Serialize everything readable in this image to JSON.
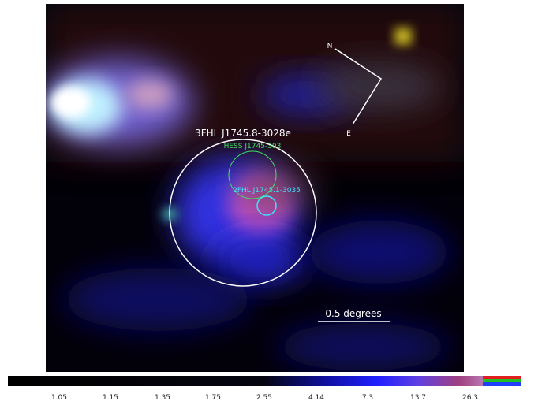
{
  "image": {
    "labels": {
      "source_3fhl": "3FHL J1745.8-3028e",
      "source_hess": "HESS J1745-303",
      "source_2fhl": "2FHL J1745.1-3035",
      "north": "N",
      "east": "E",
      "scale": "0.5 degrees"
    }
  },
  "colorbar": {
    "labels": [
      "1.05",
      "1.15",
      "1.35",
      "1.75",
      "2.55",
      "4.14",
      "7.3",
      "13.7",
      "26.3"
    ]
  }
}
